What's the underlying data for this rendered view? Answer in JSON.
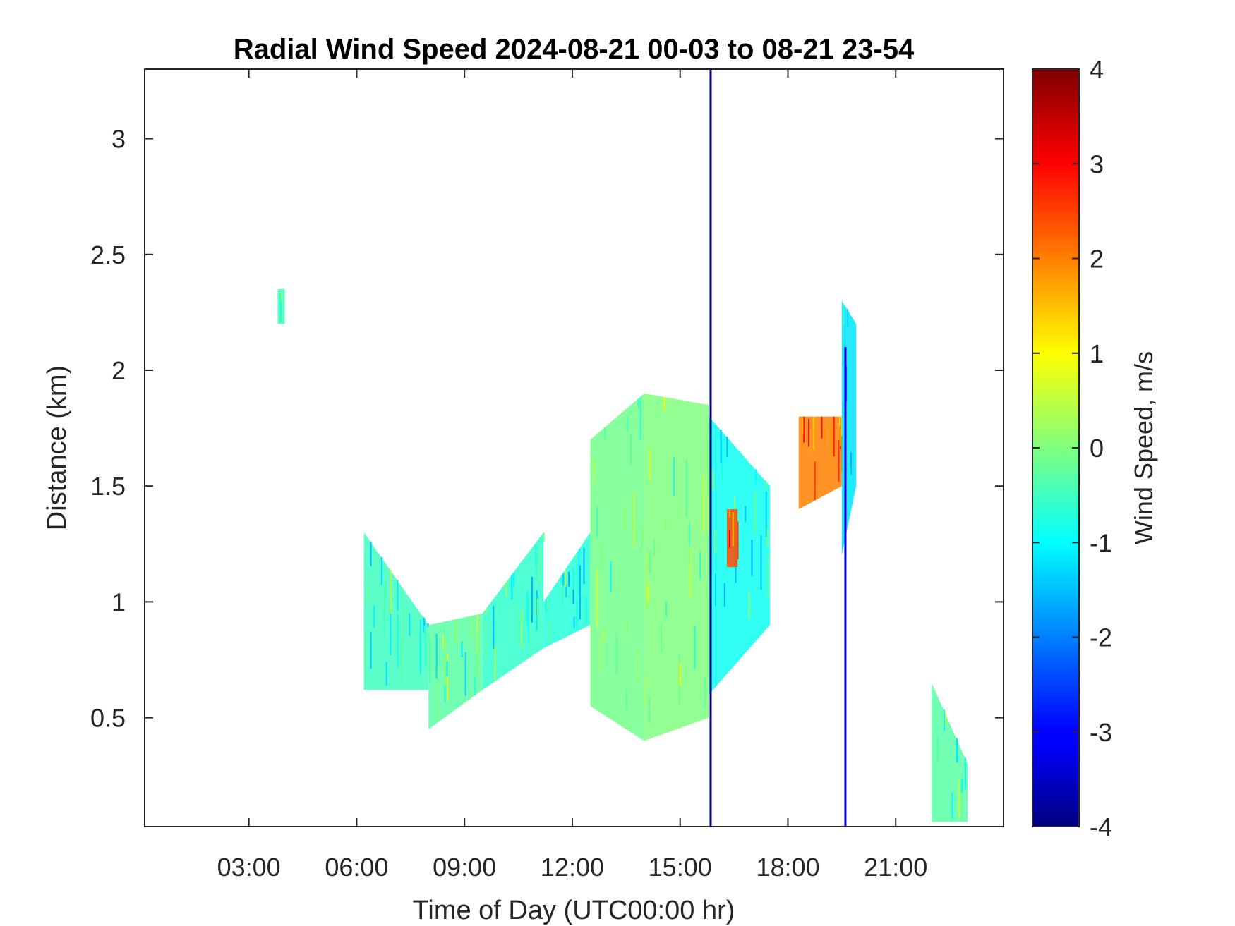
{
  "chart_data": {
    "type": "heatmap",
    "title": "Radial Wind Speed 2024-08-21 00-03 to 08-21 23-54",
    "xlabel": "Time of Day (UTC00:00 hr)",
    "ylabel": "Distance (km)",
    "xlim": [
      0.1,
      24.0
    ],
    "ylim": [
      0.03,
      3.3
    ],
    "x_ticks": [
      3,
      6,
      9,
      12,
      15,
      18,
      21
    ],
    "x_tick_labels": [
      "03:00",
      "06:00",
      "09:00",
      "12:00",
      "15:00",
      "18:00",
      "21:00"
    ],
    "y_ticks": [
      0.5,
      1,
      1.5,
      2,
      2.5,
      3
    ],
    "y_tick_labels": [
      "0.5",
      "1",
      "1.5",
      "2",
      "2.5",
      "3"
    ],
    "grid": false,
    "colorbar": {
      "label": "Wind Speed, m/s",
      "min": -4,
      "max": 4,
      "colormap": "jet",
      "ticks": [
        -4,
        -3,
        -2,
        -1,
        0,
        1,
        2,
        3,
        4
      ],
      "tick_labels": [
        "-4",
        "-3",
        "-2",
        "-1",
        "0",
        "1",
        "2",
        "3",
        "4"
      ]
    },
    "regions": [
      {
        "t": [
          6.2,
          8.0
        ],
        "bottom": [
          0.62,
          0.62
        ],
        "top": [
          1.3,
          0.9
        ],
        "speed": -0.5
      },
      {
        "t": [
          8.0,
          9.5
        ],
        "bottom": [
          0.45,
          0.62
        ],
        "top": [
          0.9,
          0.95
        ],
        "speed": -0.3
      },
      {
        "t": [
          9.5,
          11.2
        ],
        "bottom": [
          0.62,
          0.8
        ],
        "top": [
          0.95,
          1.3
        ],
        "speed": -0.6
      },
      {
        "t": [
          11.2,
          12.5
        ],
        "bottom": [
          0.8,
          0.9
        ],
        "top": [
          1.0,
          1.3
        ],
        "speed": -0.7
      },
      {
        "t": [
          12.5,
          14.0
        ],
        "bottom": [
          0.55,
          0.4
        ],
        "top": [
          1.7,
          1.9
        ],
        "speed": -0.1
      },
      {
        "t": [
          14.0,
          15.8
        ],
        "bottom": [
          0.4,
          0.5
        ],
        "top": [
          1.9,
          1.85
        ],
        "speed": 0.0
      },
      {
        "t": [
          15.8,
          17.5
        ],
        "bottom": [
          0.6,
          0.9
        ],
        "top": [
          1.8,
          1.5
        ],
        "speed": -0.9
      },
      {
        "t": [
          18.3,
          19.5
        ],
        "bottom": [
          1.4,
          1.5
        ],
        "top": [
          1.8,
          1.8
        ],
        "speed": 2.0
      },
      {
        "t": [
          19.5,
          19.9
        ],
        "bottom": [
          1.2,
          1.5
        ],
        "top": [
          2.3,
          2.2
        ],
        "speed": -1.2
      },
      {
        "t": [
          3.8,
          4.0
        ],
        "bottom": [
          2.2,
          2.2
        ],
        "top": [
          2.35,
          2.35
        ],
        "speed": -0.5
      },
      {
        "t": [
          16.3,
          16.6
        ],
        "bottom": [
          1.15,
          1.15
        ],
        "top": [
          1.4,
          1.4
        ],
        "speed": 2.4
      },
      {
        "t": [
          22.0,
          23.0
        ],
        "bottom": [
          0.05,
          0.05
        ],
        "top": [
          0.65,
          0.3
        ],
        "speed": -0.3
      }
    ],
    "lines": [
      {
        "t": 15.85,
        "bottom": 0.03,
        "top": 3.3,
        "speed": -4
      },
      {
        "t": 19.6,
        "bottom": 0.03,
        "top": 2.1,
        "speed": -3.2
      }
    ]
  }
}
